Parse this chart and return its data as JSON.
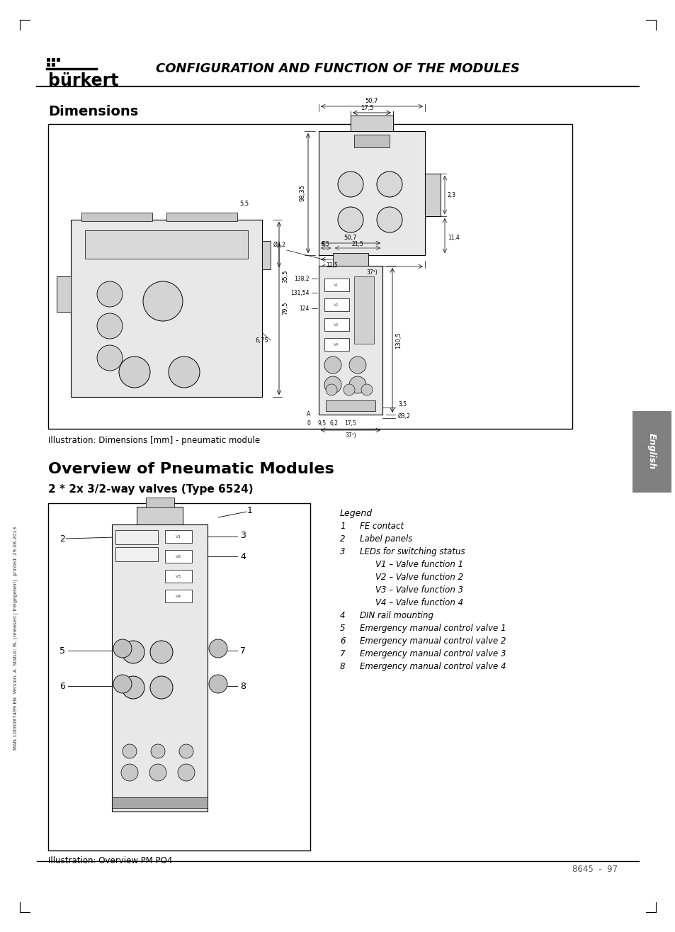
{
  "page_bg": "#ffffff",
  "header_title": "CONFIGURATION AND FUNCTION OF THE MODULES",
  "section1_title": "Dimensions",
  "section2_title": "Overview of Pneumatic Modules",
  "section2_subtitle": "2 * 2x 3/2-way valves (Type 6524)",
  "illustration1_caption": "Illustration: Dimensions [mm] - pneumatic module",
  "illustration2_caption": "Illustration: Overview PM PO4",
  "footer_text": "8645  -  97",
  "side_text": "MAN 1000087499 EN  Version: A  Status: RL (released | freigegeben)  printed: 29.08.2013",
  "legend_title": "Legend",
  "legend_items": [
    {
      "num": "1",
      "text": "FE contact"
    },
    {
      "num": "2",
      "text": "Label panels"
    },
    {
      "num": "3",
      "text": "LEDs for switching status"
    },
    {
      "num": "",
      "text": "V1 – Valve function 1"
    },
    {
      "num": "",
      "text": "V2 – Valve function 2"
    },
    {
      "num": "",
      "text": "V3 – Valve function 3"
    },
    {
      "num": "",
      "text": "V4 – Valve function 4"
    },
    {
      "num": "4",
      "text": "DIN rail mounting"
    },
    {
      "num": "5",
      "text": "Emergency manual control valve 1"
    },
    {
      "num": "6",
      "text": "Emergency manual control valve 2"
    },
    {
      "num": "7",
      "text": "Emergency manual control valve 3"
    },
    {
      "num": "8",
      "text": "Emergency manual control valve 4"
    }
  ]
}
